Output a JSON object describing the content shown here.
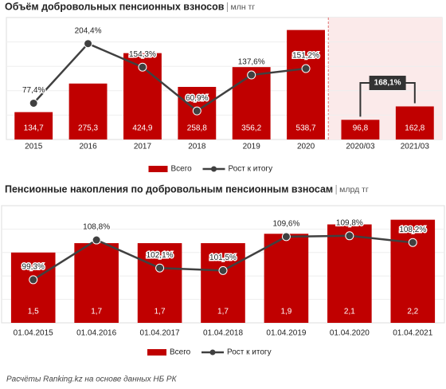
{
  "chart_data": [
    {
      "type": "bar_line",
      "title": "Объём добровольных пенсионных взносов",
      "unit_label": "млн тг",
      "categories": [
        "2015",
        "2016",
        "2017",
        "2018",
        "2019",
        "2020",
        "2020/03",
        "2021/03"
      ],
      "series": [
        {
          "name": "Всего",
          "color": "#c00000",
          "values": [
            134.7,
            275.3,
            424.9,
            258.8,
            356.2,
            538.7,
            96.8,
            162.8
          ],
          "value_labels": [
            "134,7",
            "275,3",
            "424,9",
            "258,8",
            "356,2",
            "538,7",
            "96,8",
            "162,8"
          ]
        },
        {
          "name": "Рост к итогу",
          "color": "#404040",
          "axis": "y2",
          "values": [
            77.4,
            204.4,
            154.3,
            60.9,
            137.6,
            151.2,
            null,
            null
          ],
          "value_labels": [
            "77,4%",
            "204,4%",
            "154,3%",
            "60,9%",
            "137,6%",
            "151,2%",
            null,
            null
          ]
        }
      ],
      "annotation": "168,1%",
      "ylim": [
        0,
        600
      ],
      "y2lim": [
        0,
        260
      ]
    },
    {
      "type": "bar_line",
      "title": "Пенсионные накопления по добровольным пенсионным взносам",
      "unit_label": "млрд тг",
      "categories": [
        "01.04.2015",
        "01.04.2016",
        "01.04.2017",
        "01.04.2018",
        "01.04.2019",
        "01.04.2020",
        "01.04.2021"
      ],
      "series": [
        {
          "name": "Всего",
          "color": "#c00000",
          "values": [
            1.5,
            1.7,
            1.7,
            1.7,
            1.9,
            2.1,
            2.2
          ],
          "value_labels": [
            "1,5",
            "1,7",
            "1,7",
            "1,7",
            "1,9",
            "2,1",
            "2,2"
          ]
        },
        {
          "name": "Рост к итогу",
          "color": "#404040",
          "axis": "y2",
          "values": [
            99.3,
            108.8,
            102.1,
            101.5,
            109.6,
            109.8,
            108.2
          ],
          "value_labels": [
            "99,3%",
            "108,8%",
            "102,1%",
            "101,5%",
            "109,6%",
            "109,8%",
            "108,2%"
          ]
        }
      ],
      "ylim": [
        0,
        2.5
      ],
      "y2lim": [
        89,
        117
      ]
    }
  ],
  "footer": "Расчёты Ranking.kz на основе данных НБ РК"
}
